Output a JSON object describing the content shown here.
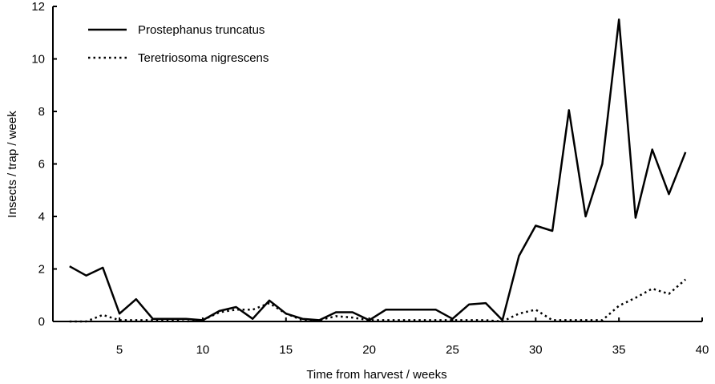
{
  "chart_data": {
    "type": "line",
    "title": "",
    "xlabel": "Time from harvest / weeks",
    "ylabel": "Insects / trap / week",
    "xlim": [
      1,
      40
    ],
    "ylim": [
      0,
      12
    ],
    "x_ticks": [
      5,
      10,
      15,
      20,
      25,
      30,
      35,
      40
    ],
    "y_ticks": [
      0,
      2,
      4,
      6,
      8,
      10,
      12
    ],
    "legend_position": "top-left",
    "grid": false,
    "series": [
      {
        "name": "Prostephanus truncatus",
        "style": "solid",
        "color": "#000000",
        "x": [
          2,
          3,
          4,
          5,
          6,
          7,
          8,
          9,
          10,
          11,
          12,
          13,
          14,
          15,
          16,
          17,
          18,
          19,
          20,
          21,
          22,
          23,
          24,
          25,
          26,
          27,
          28,
          29,
          30,
          31,
          32,
          33,
          34,
          35,
          36,
          37,
          38,
          39
        ],
        "y": [
          2.1,
          1.75,
          2.05,
          0.3,
          0.85,
          0.1,
          0.1,
          0.1,
          0.05,
          0.4,
          0.55,
          0.1,
          0.8,
          0.3,
          0.1,
          0.05,
          0.35,
          0.35,
          0.05,
          0.45,
          0.45,
          0.45,
          0.45,
          0.1,
          0.65,
          0.7,
          0.05,
          2.5,
          3.65,
          3.45,
          8.05,
          4.0,
          6.0,
          11.5,
          3.95,
          6.55,
          4.85,
          6.45
        ]
      },
      {
        "name": "Teretriosoma nigrescens",
        "style": "dotted",
        "color": "#000000",
        "x": [
          2,
          3,
          4,
          5,
          6,
          7,
          8,
          9,
          10,
          11,
          12,
          13,
          14,
          15,
          16,
          17,
          18,
          19,
          20,
          21,
          22,
          23,
          24,
          25,
          26,
          27,
          28,
          29,
          30,
          31,
          32,
          33,
          34,
          35,
          36,
          37,
          38,
          39
        ],
        "y": [
          0,
          0,
          0.25,
          0.05,
          0.05,
          0.05,
          0.05,
          0,
          0.05,
          0.35,
          0.45,
          0.45,
          0.7,
          0.3,
          0.05,
          0.05,
          0.2,
          0.15,
          0.05,
          0.05,
          0.05,
          0.05,
          0.05,
          0.05,
          0.05,
          0.05,
          0,
          0.3,
          0.45,
          0.05,
          0.05,
          0.05,
          0.05,
          0.6,
          0.9,
          1.25,
          1.05,
          1.6
        ]
      }
    ]
  }
}
